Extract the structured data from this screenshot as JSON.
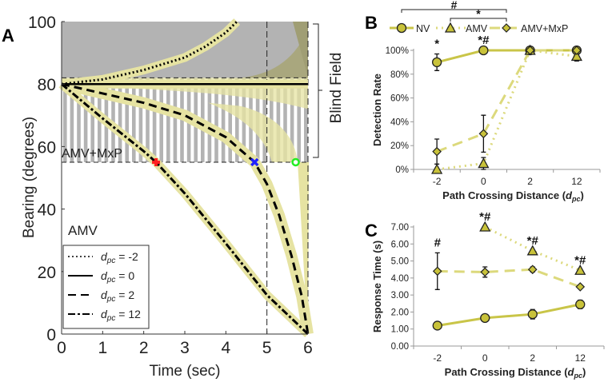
{
  "chart_data": [
    {
      "panel": "A",
      "type": "line",
      "xlabel": "Time (sec)",
      "ylabel": "Bearing (degrees)",
      "xlim": [
        0,
        6
      ],
      "ylim": [
        0,
        100
      ],
      "xticks": [
        "0",
        "1",
        "2",
        "3",
        "4",
        "5",
        "6"
      ],
      "yticks": [
        "0",
        "20",
        "40",
        "60",
        "80",
        "100"
      ],
      "blind_field_label": "Blind Field",
      "blind_field_range": [
        55,
        82
      ],
      "region_labels": [
        "AMV+MxP",
        "AMV"
      ],
      "vertical_markers": [
        5,
        6
      ],
      "series": [
        {
          "name": "d_pc = -2",
          "var": "d",
          "sub": "pc",
          "value": " = -2",
          "style": "dotted",
          "x": [
            0,
            1,
            2,
            3,
            3.5,
            4,
            4.27
          ],
          "y": [
            80,
            81.5,
            84.5,
            88.5,
            92,
            96.5,
            100
          ]
        },
        {
          "name": "d_pc = 0",
          "var": "d",
          "sub": "pc",
          "value": " = 0",
          "style": "solid",
          "x": [
            0,
            6
          ],
          "y": [
            80,
            80
          ]
        },
        {
          "name": "d_pc = 2",
          "var": "d",
          "sub": "pc",
          "value": " = 2",
          "style": "dashed",
          "x": [
            0,
            1,
            2,
            3,
            4,
            4.7,
            5,
            5.3,
            5.6,
            5.85,
            6
          ],
          "y": [
            80,
            77,
            74,
            70,
            63,
            55,
            48,
            38,
            25,
            12,
            0
          ]
        },
        {
          "name": "d_pc = 12",
          "var": "d",
          "sub": "pc",
          "value": " = 12",
          "style": "dashdot",
          "x": [
            0,
            1,
            2,
            2.3,
            3,
            4,
            5,
            6
          ],
          "y": [
            80,
            69,
            58.5,
            55,
            45,
            29,
            12.5,
            0
          ]
        }
      ],
      "detection_markers": [
        {
          "shape": "plus",
          "color": "#ff2020",
          "x": 2.3,
          "y": 55
        },
        {
          "shape": "x",
          "color": "#2020ff",
          "x": 4.7,
          "y": 55
        },
        {
          "shape": "circle",
          "color": "#22ee22",
          "x": 5.7,
          "y": 55
        }
      ]
    },
    {
      "panel": "B",
      "type": "line",
      "ylabel": "Detection Rate",
      "xlabel": "Path Crossing Distance (",
      "xlabel_var": "d",
      "xlabel_sub": "pc",
      "xlabel_end": ")",
      "categories": [
        "-2",
        "0",
        "2",
        "12"
      ],
      "ylim": [
        0,
        100
      ],
      "yticks": [
        "0%",
        "20%",
        "40%",
        "60%",
        "80%",
        "100%"
      ],
      "series": [
        {
          "name": "NV",
          "marker": "circle",
          "style": "solid",
          "values": [
            90,
            100,
            100,
            100
          ],
          "errors": [
            7,
            0,
            0,
            0
          ]
        },
        {
          "name": "AMV",
          "marker": "triangle",
          "style": "dotted",
          "values": [
            0,
            5,
            100,
            95
          ],
          "errors": [
            0,
            5,
            0,
            4
          ]
        },
        {
          "name": "AMV+MxP",
          "marker": "diamond",
          "style": "dashed",
          "values": [
            15,
            30,
            100,
            100
          ],
          "errors": [
            10.5,
            15.5,
            0,
            0
          ]
        }
      ],
      "annotations": [
        {
          "category": 0,
          "series": 0,
          "text": "*"
        },
        {
          "category": 1,
          "series": 0,
          "text": "*#"
        }
      ],
      "legend_brackets": [
        {
          "from": "NV",
          "to": "AMV+MxP",
          "text": "#"
        },
        {
          "from": "AMV",
          "to": "AMV+MxP",
          "text": "*"
        }
      ]
    },
    {
      "panel": "C",
      "type": "line",
      "ylabel": "Response Time (s)",
      "xlabel": "Path Crossing Distance (",
      "xlabel_var": "d",
      "xlabel_sub": "pc",
      "xlabel_end": ")",
      "categories": [
        "-2",
        "0",
        "2",
        "12"
      ],
      "ylim": [
        0,
        7
      ],
      "yticks": [
        "0.00",
        "1.00",
        "2.00",
        "3.00",
        "4.00",
        "5.00",
        "6.00",
        "7.00"
      ],
      "series": [
        {
          "name": "NV",
          "marker": "circle",
          "style": "solid",
          "values": [
            1.2,
            1.65,
            1.87,
            2.45
          ],
          "errors": [
            0.05,
            0.2,
            0.28,
            0.25
          ]
        },
        {
          "name": "AMV",
          "marker": "triangle",
          "style": "dotted",
          "values": [
            null,
            7.0,
            5.6,
            4.45
          ],
          "errors": [
            0,
            0,
            0,
            0
          ]
        },
        {
          "name": "AMV+MxP",
          "marker": "diamond",
          "style": "dashed",
          "values": [
            4.4,
            4.35,
            4.5,
            3.48
          ],
          "errors": [
            1.08,
            0.3,
            0.15,
            0.05
          ]
        }
      ],
      "annotations": [
        {
          "category": 0,
          "series": 2,
          "text": "#"
        },
        {
          "category": 1,
          "series": 1,
          "text": "*#"
        },
        {
          "category": 2,
          "series": 1,
          "text": "*#"
        },
        {
          "category": 3,
          "series": 1,
          "text": "*#"
        }
      ]
    }
  ],
  "panel_labels": [
    "A",
    "B",
    "C"
  ],
  "colors": {
    "band": "#e6e3a2",
    "nv_line": "#c9c548",
    "amv_line": "#dcd97c",
    "marker_fill": "#c8c23a",
    "blind_grey": "#b3b3b3"
  }
}
